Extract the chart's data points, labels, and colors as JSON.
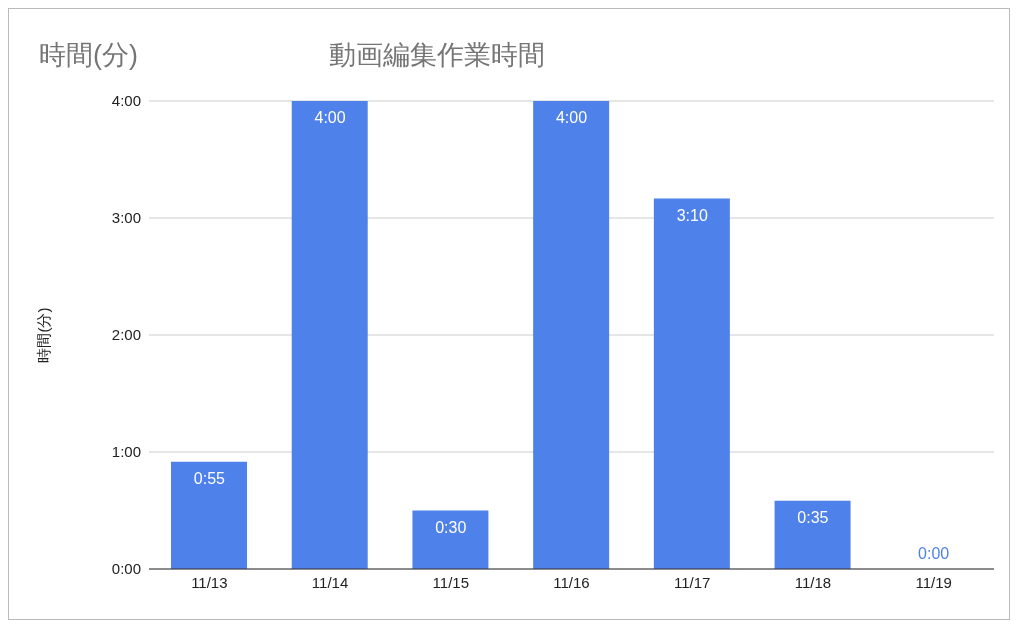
{
  "chart_data": {
    "type": "bar",
    "title": "動画編集作業時間",
    "ylabel": "時間(分)",
    "annotations": [
      "時間(分)"
    ],
    "categories": [
      "11/13",
      "11/14",
      "11/15",
      "11/16",
      "11/17",
      "11/18",
      "11/19"
    ],
    "values": [
      55,
      240,
      30,
      240,
      190,
      35,
      0
    ],
    "value_labels": [
      "0:55",
      "4:00",
      "0:30",
      "4:00",
      "3:10",
      "0:35",
      "0:00"
    ],
    "color": "#4f81ea",
    "ylim": [
      0,
      240
    ],
    "yticks": [
      {
        "value": 0,
        "label": "0:00"
      },
      {
        "value": 60,
        "label": "1:00"
      },
      {
        "value": 120,
        "label": "2:00"
      },
      {
        "value": 180,
        "label": "3:00"
      },
      {
        "value": 240,
        "label": "4:00"
      }
    ],
    "grid": "y",
    "legend": false
  }
}
